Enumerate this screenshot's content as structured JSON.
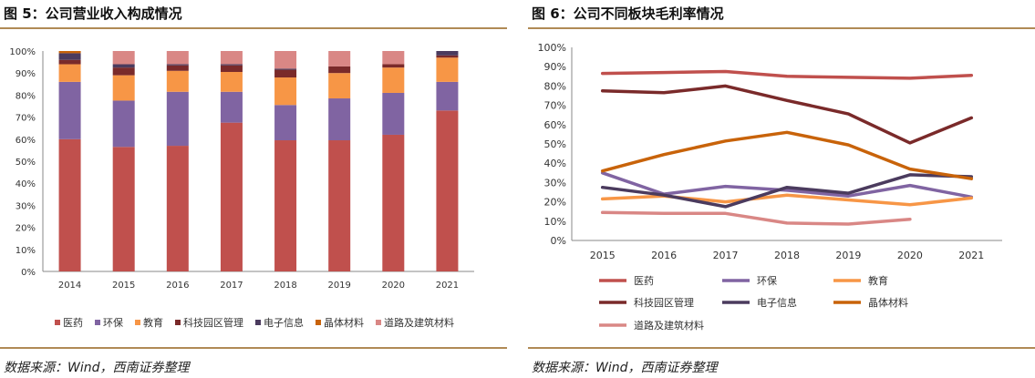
{
  "left_figure": {
    "title": "图 5：公司营业收入构成情况",
    "source": "数据来源：Wind，西南证券整理"
  },
  "right_figure": {
    "title": "图 6：公司不同板块毛利率情况",
    "source": "数据来源：Wind，西南证券整理"
  },
  "chart_data": [
    {
      "type": "bar",
      "stacked": true,
      "percent_stacked": true,
      "title": "",
      "xlabel": "",
      "ylabel": "",
      "ylim": [
        0,
        100
      ],
      "yticks": [
        "0%",
        "10%",
        "20%",
        "30%",
        "40%",
        "50%",
        "60%",
        "70%",
        "80%",
        "90%",
        "100%"
      ],
      "categories": [
        "2014",
        "2015",
        "2016",
        "2017",
        "2018",
        "2019",
        "2020",
        "2021"
      ],
      "series": [
        {
          "name": "医药",
          "color": "#c0504d",
          "values": [
            60,
            56.5,
            57,
            67.5,
            59.5,
            59.5,
            62,
            73
          ]
        },
        {
          "name": "环保",
          "color": "#8064a2",
          "values": [
            26,
            21,
            24.5,
            14,
            16,
            19,
            19,
            13
          ]
        },
        {
          "name": "教育",
          "color": "#f79646",
          "values": [
            8,
            11.5,
            9.5,
            9,
            12.5,
            11.5,
            11.5,
            11
          ]
        },
        {
          "name": "科技园区管理",
          "color": "#7a2a2a",
          "values": [
            2,
            3.5,
            2.5,
            3,
            3.5,
            3,
            1.5,
            1
          ]
        },
        {
          "name": "电子信息",
          "color": "#4b3b5e",
          "values": [
            3,
            1.5,
            0.5,
            0.5,
            0.5,
            0,
            0,
            2
          ]
        },
        {
          "name": "晶体材料",
          "color": "#c8630a",
          "values": [
            1,
            0,
            0,
            0,
            0,
            0,
            0,
            0
          ]
        },
        {
          "name": "道路及建筑材料",
          "color": "#d98785",
          "values": [
            0,
            6,
            6,
            6,
            8,
            7,
            6,
            0
          ]
        }
      ],
      "legend_position": "bottom"
    },
    {
      "type": "line",
      "title": "",
      "xlabel": "",
      "ylabel": "",
      "ylim": [
        0,
        100
      ],
      "yticks": [
        "0%",
        "10%",
        "20%",
        "30%",
        "40%",
        "50%",
        "60%",
        "70%",
        "80%",
        "90%",
        "100%"
      ],
      "categories": [
        "2015",
        "2016",
        "2017",
        "2018",
        "2019",
        "2020",
        "2021"
      ],
      "series": [
        {
          "name": "医药",
          "color": "#c0504d",
          "values": [
            86.5,
            87,
            87.5,
            85,
            84.5,
            84,
            85.5
          ]
        },
        {
          "name": "环保",
          "color": "#8064a2",
          "values": [
            35,
            24,
            28,
            26,
            23,
            28.5,
            22.5
          ]
        },
        {
          "name": "教育",
          "color": "#f79646",
          "values": [
            21.5,
            23,
            20,
            23.5,
            21,
            18.5,
            22
          ]
        },
        {
          "name": "科技园区管理",
          "color": "#7a2a2a",
          "values": [
            77.5,
            76.5,
            80,
            72.5,
            65.5,
            50.5,
            63.5
          ]
        },
        {
          "name": "电子信息",
          "color": "#4b3b5e",
          "values": [
            27.5,
            23.5,
            17.5,
            27.5,
            24.5,
            34,
            33
          ]
        },
        {
          "name": "晶体材料",
          "color": "#c8630a",
          "values": [
            36,
            44.5,
            51.5,
            56,
            49.5,
            37,
            32
          ]
        },
        {
          "name": "道路及建筑材料",
          "color": "#d98785",
          "values": [
            14.5,
            14,
            14,
            9,
            8.5,
            11,
            null
          ]
        }
      ],
      "legend_position": "bottom"
    }
  ]
}
